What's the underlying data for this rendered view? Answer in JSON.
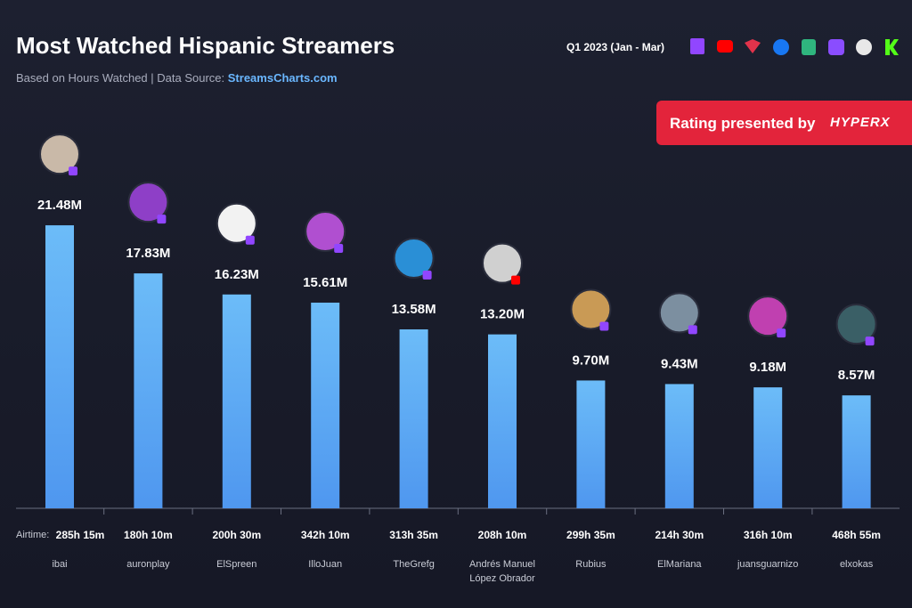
{
  "chart_data": {
    "type": "bar",
    "title": "Most Watched Hispanic Streamers",
    "subtitle": "Based on Hours Watched  |  Data Source:",
    "source": "StreamsCharts.com",
    "period": "Q1 2023 (Jan - Mar)",
    "sponsor": "Rating presented by",
    "sponsor_brand": "HYPERX",
    "airtime_label": "Airtime:",
    "categories": [
      "ibai",
      "auronplay",
      "ElSpreen",
      "IlloJuan",
      "TheGrefg",
      "Andrés Manuel López Obrador",
      "Rubius",
      "ElMariana",
      "juansguarnizo",
      "elxokas"
    ],
    "airtime": [
      "285h 15m",
      "180h 10m",
      "200h 30m",
      "342h 10m",
      "313h 35m",
      "208h 10m",
      "299h 35m",
      "214h 30m",
      "316h 10m",
      "468h 55m"
    ],
    "values": [
      21.48,
      17.83,
      16.23,
      15.61,
      13.58,
      13.2,
      9.7,
      9.43,
      9.18,
      8.57
    ],
    "value_labels": [
      "21.48M",
      "17.83M",
      "16.23M",
      "15.61M",
      "13.58M",
      "13.20M",
      "9.70M",
      "9.43M",
      "9.18M",
      "8.57M"
    ],
    "color": "#62b0f6"
  }
}
